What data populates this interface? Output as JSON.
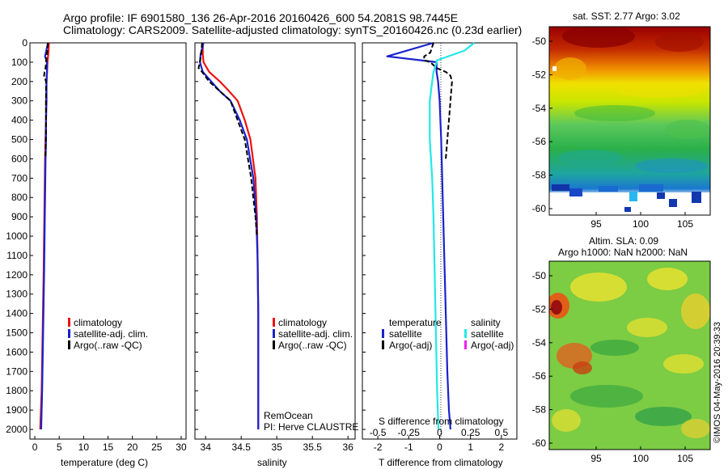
{
  "header": {
    "line1": "Argo profile: IF 6901580_136 26-Apr-2016 20160426_600 54.2081S 98.7445E",
    "line2": "Climatology: CARS2009. Satellite-adjusted climatology: synTS_20160426.nc (0.23d earlier)"
  },
  "colors": {
    "climatology": "#ee1111",
    "satellite": "#1a22cc",
    "argo": "#000000",
    "salinity_satellite": "#22e8e8",
    "salinity_argo": "#ee22ee"
  },
  "panels": {
    "temperature": {
      "xlabel": "temperature (deg C)",
      "xticks": [
        "0",
        "5",
        "10",
        "15",
        "20",
        "25",
        "30"
      ],
      "legend": [
        "climatology",
        "satellite-adj. clim.",
        "Argo(..raw -QC)"
      ]
    },
    "salinity": {
      "xlabel": "salinity",
      "xticks": [
        "34",
        "34.5",
        "35",
        "35.5",
        "36"
      ],
      "legend": [
        "climatology",
        "satellite-adj. clim.",
        "Argo(..raw -QC)"
      ],
      "note1": "RemOcean",
      "note2": "PI: Herve CLAUSTRE"
    },
    "difference": {
      "xlabel": "T difference from climatology",
      "xticks": [
        "-2",
        "-1",
        "0",
        "1",
        "2"
      ],
      "top_label": "S difference from climatology",
      "top_ticks": [
        "-0.5",
        "-0.25",
        "0",
        "0.25",
        "0.5"
      ],
      "legend_temperature_title": "temperature",
      "legend_salinity_title": "salinity",
      "legend_temperature": [
        "satellite",
        "Argo(-adj)"
      ],
      "legend_salinity": [
        "satellite",
        "Argo(-adj)"
      ]
    }
  },
  "depth_ticks": [
    "0",
    "100",
    "200",
    "300",
    "400",
    "500",
    "600",
    "700",
    "800",
    "900",
    "1000",
    "1100",
    "1200",
    "1300",
    "1400",
    "1500",
    "1600",
    "1700",
    "1800",
    "1900",
    "2000"
  ],
  "maps": {
    "sst": {
      "title": "sat. SST: 2.77 Argo: 3.02",
      "yticks": [
        "-50",
        "-52",
        "-54",
        "-56",
        "-58",
        "-60"
      ],
      "xticks": [
        "95",
        "100",
        "105"
      ]
    },
    "sla": {
      "title1": "Altim. SLA: 0.09",
      "title2": "Argo h1000: NaN h2000: NaN",
      "yticks": [
        "-50",
        "-52",
        "-54",
        "-56",
        "-58",
        "-60"
      ],
      "xticks": [
        "95",
        "100",
        "105"
      ]
    }
  },
  "credit": "©IMOS 04-May-2016 20:39:33",
  "chart_data": [
    {
      "type": "line",
      "panel": "temperature",
      "xlabel": "temperature (deg C)",
      "ylabel": "",
      "xlim": [
        -1,
        31
      ],
      "ylim": [
        2050,
        0
      ],
      "series": [
        {
          "name": "climatology",
          "x": [
            2.9,
            2.8,
            2.6,
            2.5,
            2.4,
            2.3,
            2.3,
            2.2,
            2.1,
            2.0,
            1.9,
            1.8,
            1.6,
            1.4,
            1.1
          ],
          "y": [
            0,
            50,
            100,
            150,
            200,
            300,
            400,
            500,
            600,
            800,
            1000,
            1200,
            1500,
            1800,
            2000
          ]
        },
        {
          "name": "satellite-adj. clim.",
          "x": [
            2.7,
            2.1,
            2.5,
            2.5,
            2.4,
            2.4,
            2.3,
            2.3,
            2.2,
            2.1,
            2.0,
            1.9,
            1.7,
            1.5,
            1.3
          ],
          "y": [
            0,
            70,
            100,
            150,
            200,
            300,
            400,
            500,
            600,
            800,
            1000,
            1200,
            1500,
            1800,
            2000
          ]
        },
        {
          "name": "Argo(..raw -QC)",
          "x": [
            2.7,
            2.5,
            2.3,
            2.2,
            2.0,
            1.9,
            2.3,
            2.3,
            2.2
          ],
          "y": [
            0,
            50,
            100,
            130,
            150,
            170,
            200,
            400,
            600
          ]
        }
      ]
    },
    {
      "type": "line",
      "panel": "salinity",
      "xlabel": "salinity",
      "ylabel": "",
      "xlim": [
        33.85,
        36.1
      ],
      "ylim": [
        2050,
        0
      ],
      "series": [
        {
          "name": "climatology",
          "x": [
            33.96,
            33.96,
            33.97,
            34.05,
            34.2,
            34.33,
            34.45,
            34.55,
            34.63,
            34.7,
            34.72,
            34.73,
            34.74,
            34.74,
            34.74
          ],
          "y": [
            0,
            60,
            100,
            150,
            200,
            250,
            300,
            400,
            500,
            700,
            900,
            1100,
            1400,
            1700,
            2000
          ]
        },
        {
          "name": "satellite-adj. clim.",
          "x": [
            33.97,
            33.93,
            33.92,
            33.96,
            34.08,
            34.2,
            34.35,
            34.48,
            34.58,
            34.67,
            34.71,
            34.73,
            34.74,
            34.74,
            34.74
          ],
          "y": [
            0,
            60,
            100,
            150,
            200,
            250,
            300,
            400,
            500,
            700,
            900,
            1100,
            1400,
            1700,
            2000
          ]
        },
        {
          "name": "Argo(..raw -QC)",
          "x": [
            33.95,
            33.94,
            33.92,
            33.9,
            33.95,
            34.05,
            34.2,
            34.35,
            34.45,
            34.55,
            34.64,
            34.7,
            34.72
          ],
          "y": [
            0,
            50,
            100,
            130,
            150,
            200,
            250,
            300,
            400,
            500,
            700,
            900,
            1000
          ]
        }
      ]
    },
    {
      "type": "line",
      "panel": "difference",
      "xlabel": "T difference from climatology",
      "top_label": "S difference from climatology",
      "xlim": [
        -2.5,
        2.5
      ],
      "ylim": [
        2050,
        0
      ],
      "series": [
        {
          "name": "temperature satellite",
          "x": [
            -0.2,
            -1.7,
            -0.1,
            -0.1,
            -0.05,
            0.0,
            0.05,
            0.1,
            0.15,
            0.2,
            0.25,
            0.3,
            0.35
          ],
          "y": [
            0,
            70,
            100,
            150,
            200,
            300,
            500,
            800,
            1100,
            1400,
            1700,
            1900,
            2000
          ]
        },
        {
          "name": "temperature Argo(-adj)",
          "x": [
            -0.2,
            -0.3,
            -0.5,
            -0.5,
            -0.3,
            -0.1,
            0.2,
            0.35,
            0.4,
            0.3,
            0.2
          ],
          "y": [
            0,
            50,
            70,
            90,
            100,
            130,
            150,
            170,
            200,
            400,
            600
          ]
        },
        {
          "name": "salinity satellite",
          "x": [
            0.28,
            0.2,
            -0.02,
            -0.05,
            -0.06,
            -0.08,
            -0.08,
            -0.06,
            -0.05,
            -0.04,
            -0.03,
            -0.02,
            -0.01
          ],
          "y": [
            0,
            40,
            90,
            150,
            200,
            300,
            500,
            700,
            900,
            1200,
            1500,
            1800,
            2000
          ]
        }
      ]
    }
  ]
}
